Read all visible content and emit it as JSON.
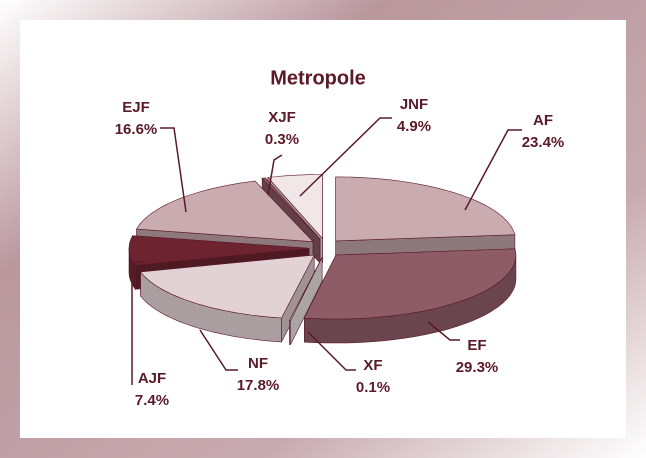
{
  "chart_data": {
    "type": "pie",
    "title": "Metropole",
    "categories": [
      "AF",
      "EF",
      "XF",
      "NF",
      "AJF",
      "EJF",
      "XJF",
      "JNF"
    ],
    "values": [
      23.4,
      29.3,
      0.1,
      17.8,
      7.4,
      16.6,
      0.3,
      4.9
    ],
    "value_labels": [
      "23.4%",
      "29.3%",
      "0.1%",
      "17.8%",
      "7.4%",
      "16.6%",
      "0.3%",
      "4.9%"
    ],
    "colors": [
      "#c9abb0",
      "#8e5c66",
      "#f3eaec",
      "#e3d2d5",
      "#6e2430",
      "#c9abb0",
      "#8e5c66",
      "#f1e7e9"
    ]
  }
}
